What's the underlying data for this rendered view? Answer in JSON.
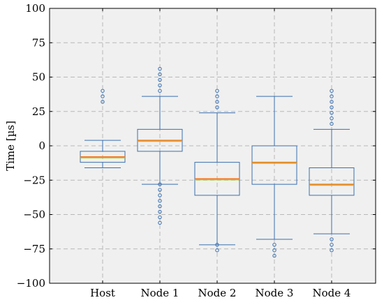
{
  "chart_data": {
    "type": "boxplot",
    "title": "",
    "xlabel": "",
    "ylabel": "Time [µs]",
    "ylim": [
      -100,
      100
    ],
    "yticks": [
      100,
      75,
      50,
      25,
      0,
      -25,
      -50,
      -75,
      -100
    ],
    "ytick_labels": [
      "100",
      "75",
      "50",
      "25",
      "0",
      "−25",
      "−50",
      "−75",
      "−100"
    ],
    "categories": [
      "Host",
      "Node 1",
      "Node 2",
      "Node 3",
      "Node 4"
    ],
    "grid": true,
    "colors": {
      "box": "#3a6fb0",
      "median": "#f07818",
      "mean": "#b0c020",
      "outlier": "#3a6fb0",
      "grid": "#b8b8b8",
      "background": "#f0f0f0"
    },
    "boxes": [
      {
        "name": "Host",
        "whisker_low": -16,
        "q1": -12,
        "median": -8,
        "mean": -8,
        "q3": -4,
        "whisker_high": 4,
        "outliers": [
          32,
          36,
          40
        ]
      },
      {
        "name": "Node 1",
        "whisker_low": -28,
        "q1": -4,
        "median": 4,
        "mean": 4,
        "q3": 12,
        "whisker_high": 36,
        "outliers": [
          40,
          44,
          48,
          52,
          56,
          -28,
          -32,
          -36,
          -40,
          -44,
          -48,
          -52,
          -56
        ]
      },
      {
        "name": "Node 2",
        "whisker_low": -72,
        "q1": -36,
        "median": -24,
        "mean": -24,
        "q3": -12,
        "whisker_high": 24,
        "outliers": [
          28,
          32,
          36,
          40,
          -72,
          -76
        ]
      },
      {
        "name": "Node 3",
        "whisker_low": -68,
        "q1": -28,
        "median": -12,
        "mean": -12,
        "q3": 0,
        "whisker_high": 36,
        "outliers": [
          -72,
          -76,
          -80
        ]
      },
      {
        "name": "Node 4",
        "whisker_low": -64,
        "q1": -36,
        "median": -28,
        "mean": -28,
        "q3": -16,
        "whisker_high": 12,
        "outliers": [
          16,
          20,
          24,
          28,
          32,
          36,
          40,
          -68,
          -72,
          -76
        ]
      }
    ]
  }
}
